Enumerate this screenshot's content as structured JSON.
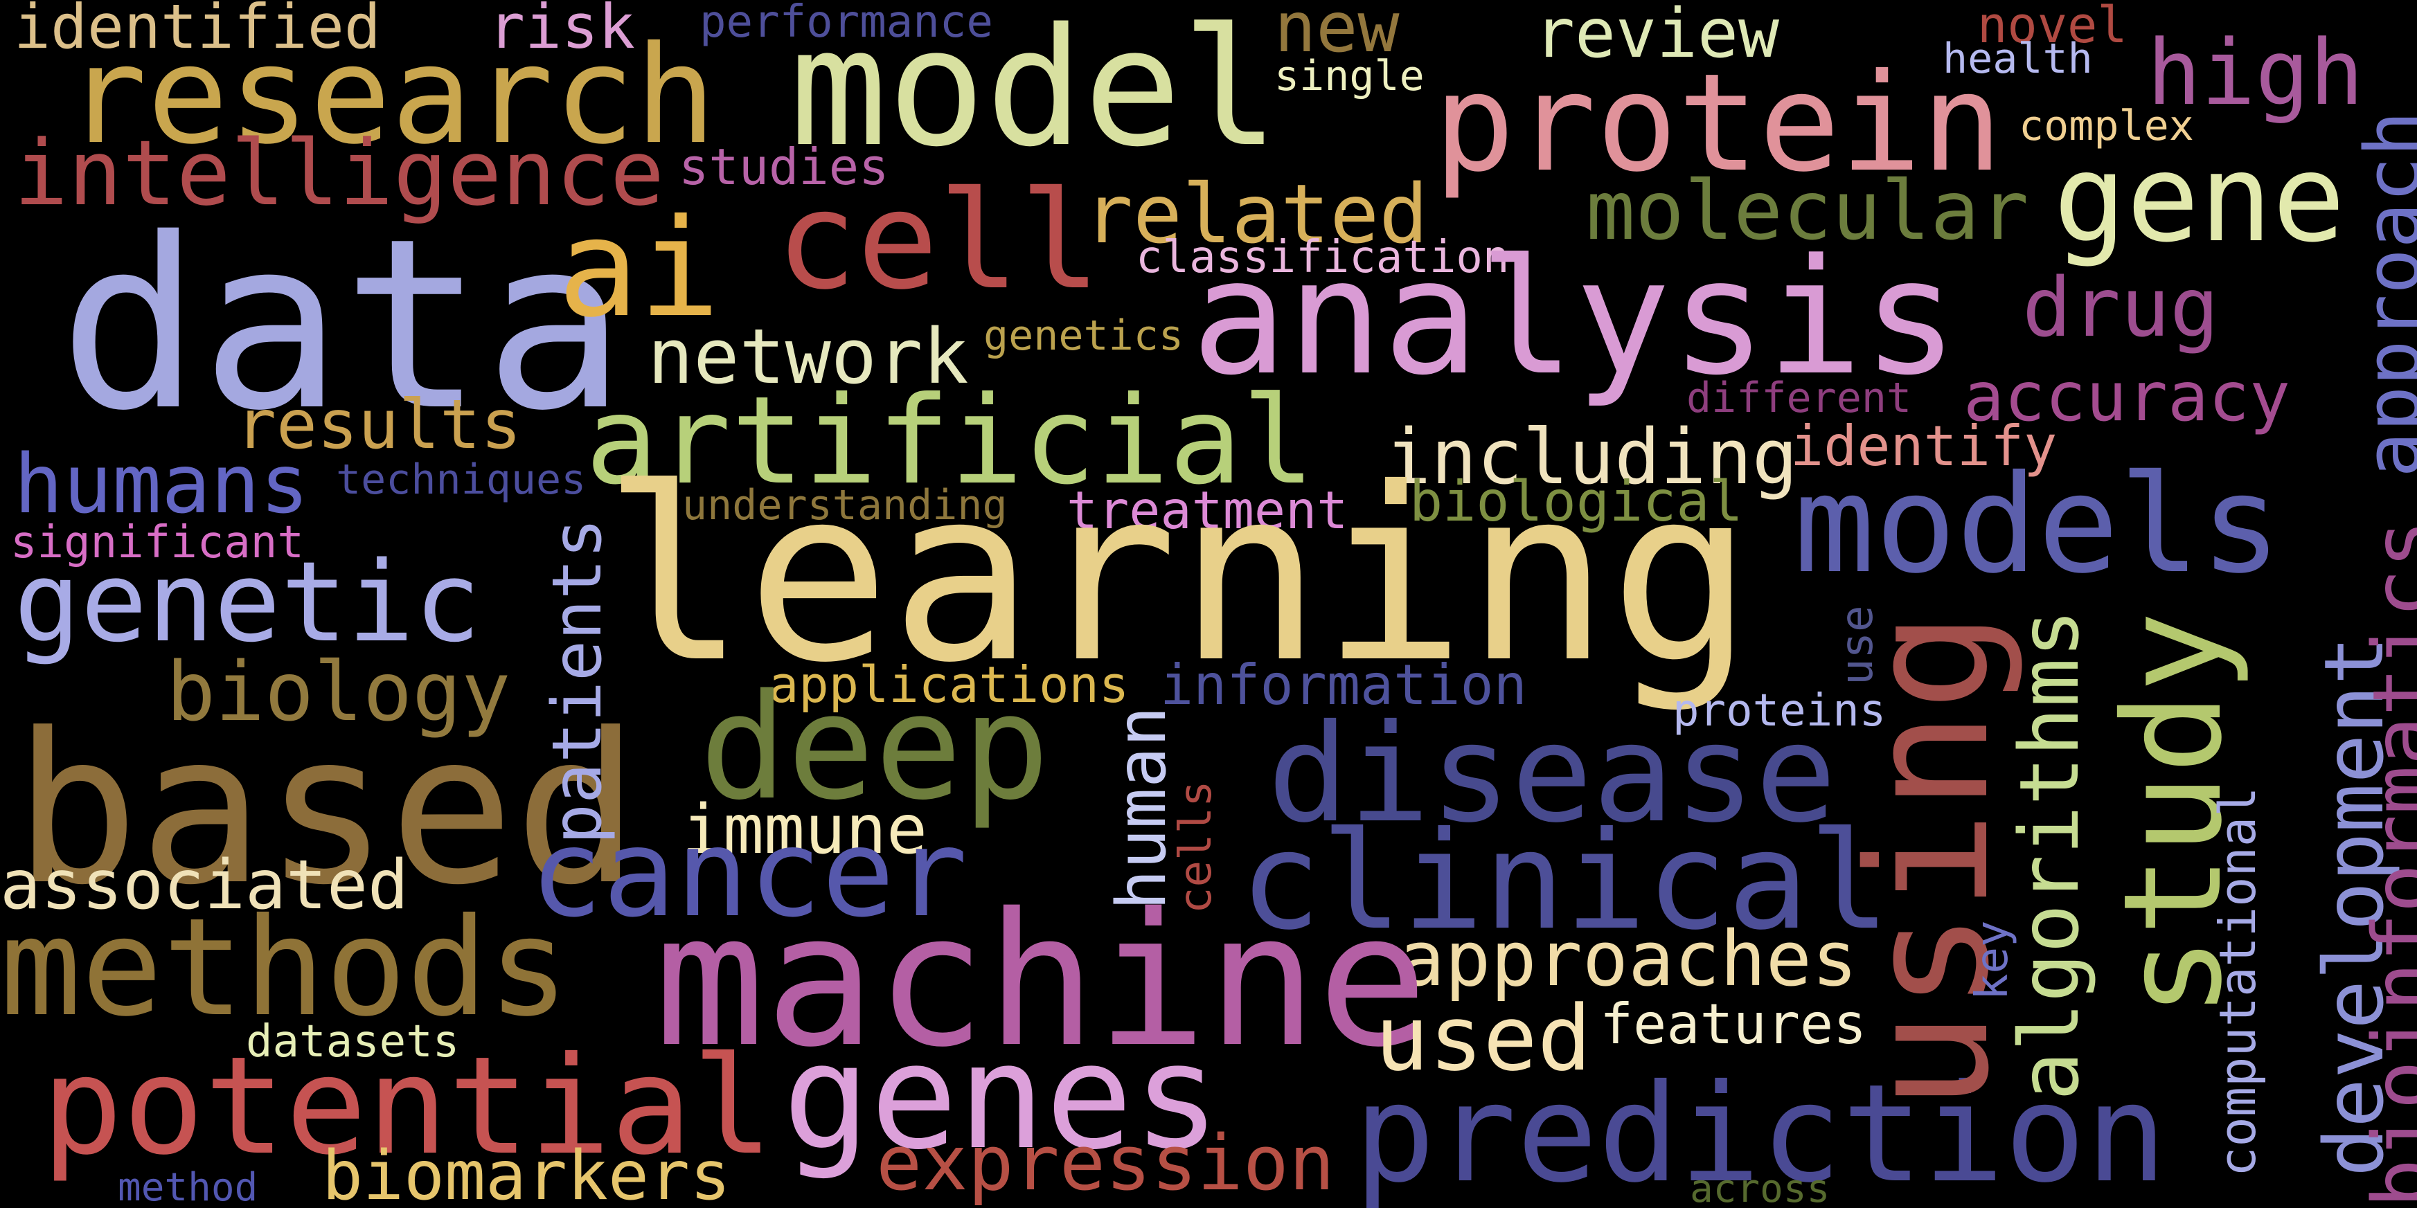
{
  "words": {
    "learning": "learning",
    "data": "data",
    "analysis": "analysis",
    "machine": "machine",
    "using": "using",
    "models": "models",
    "model": "model",
    "based": "based",
    "protein": "protein",
    "research": "research",
    "methods": "methods",
    "artificial": "artificial",
    "prediction": "prediction",
    "potential": "potential",
    "genes": "genes",
    "deep": "deep",
    "clinical": "clinical",
    "disease": "disease",
    "cell": "cell",
    "cancer": "cancer",
    "study": "study",
    "genetic": "genetic",
    "ai": "ai",
    "gene": "gene",
    "intelligence": "intelligence",
    "humans": "humans",
    "high": "high",
    "bioinformatics": "bioinformatics",
    "development": "development",
    "related": "related",
    "molecular": "molecular",
    "network": "network",
    "including": "including",
    "results": "results",
    "biology": "biology",
    "expression": "expression",
    "biomarkers": "biomarkers",
    "approaches": "approaches",
    "used": "used",
    "review": "review",
    "accuracy": "accuracy",
    "drug": "drug",
    "identified": "identified",
    "associated": "associated",
    "algorithms": "algorithms",
    "patients": "patients",
    "approach": "approach",
    "new": "new",
    "risk": "risk",
    "immune": "immune",
    "human": "human",
    "biological": "biological",
    "treatment": "treatment",
    "features": "features",
    "identify": "identify",
    "information": "information",
    "applications": "applications",
    "performance": "performance",
    "studies": "studies",
    "novel": "novel",
    "complex": "complex",
    "classification": "classification",
    "genetics": "genetics",
    "techniques": "techniques",
    "understanding": "understanding",
    "significant": "significant",
    "different": "different",
    "proteins": "proteins",
    "datasets": "datasets",
    "computational": "computational",
    "method": "method",
    "across": "across",
    "cells": "cells",
    "single": "single",
    "health": "health",
    "key": "key",
    "use": "use"
  },
  "colors": {
    "learning": "#e8d08a",
    "data": "#a4a8e0",
    "analysis": "#d99bd4",
    "machine": "#b45fa4",
    "using": "#a24f4b",
    "models": "#5c5fac",
    "model": "#d8e0a0",
    "based": "#8c6d3a",
    "protein": "#e0929a",
    "research": "#c9a64e",
    "methods": "#8f7337",
    "artificial": "#b7d07a",
    "prediction": "#4a4a94",
    "potential": "#c65352",
    "genes": "#dca0da",
    "deep": "#6d7d3c",
    "clinical": "#4d4f98",
    "disease": "#474a8e",
    "cell": "#b84d4c",
    "cancer": "#5658ac",
    "study": "#b4c86e",
    "genetic": "#a8abe6",
    "ai": "#e6b34a",
    "gene": "#e2e9ad",
    "intelligence": "#b04c4e",
    "humans": "#6366c4",
    "high": "#a85a9c",
    "bioinformatics": "#9e4c8e",
    "development": "#8c91d6",
    "related": "#d7b05a",
    "molecular": "#6c7d3d",
    "network": "#e6e8be",
    "including": "#f0e3be",
    "results": "#caa150",
    "biology": "#927a3e",
    "expression": "#b75045",
    "biomarkers": "#e6c56c",
    "approaches": "#f0dca8",
    "used": "#f6e3b4",
    "review": "#dfe9b6",
    "accuracy": "#a44c90",
    "drug": "#9d4d8f",
    "identified": "#dcc08a",
    "associated": "#f0e2b8",
    "algorithms": "#c6dc92",
    "patients": "#a6aae6",
    "approach": "#6e72c6",
    "new": "#93773d",
    "risk": "#dc9ed4",
    "immune": "#f6eaba",
    "human": "#c6cbf2",
    "biological": "#7e9042",
    "treatment": "#dc8ad6",
    "features": "#f6efcf",
    "identify": "#e3928c",
    "information": "#4e529c",
    "applications": "#dcb850",
    "performance": "#4e4f9a",
    "studies": "#b863a8",
    "novel": "#b04a42",
    "complex": "#f1d092",
    "classification": "#eab6de",
    "genetics": "#bba24e",
    "techniques": "#4c4e9e",
    "understanding": "#8e773c",
    "significant": "#d86ec6",
    "different": "#8e3e7e",
    "proteins": "#b4b8ee",
    "datasets": "#e6eeb6",
    "computational": "#a6aae6",
    "method": "#5257b2",
    "across": "#566a2e",
    "cells": "#b04a44",
    "single": "#eef0c0",
    "health": "#b6baf0",
    "key": "#6e72c6",
    "use": "#52568e"
  }
}
